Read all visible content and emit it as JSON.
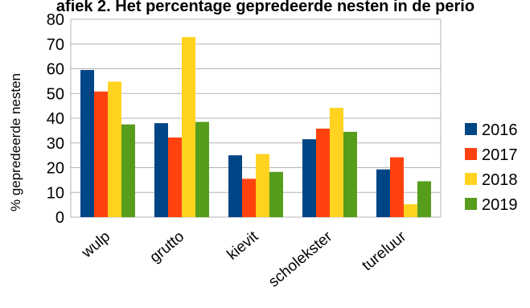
{
  "chart_data": {
    "type": "bar",
    "title": "afiek 2. Het percentage gepredeerde nesten in de perio",
    "ylabel": "% gepredeerde nesten",
    "xlabel": "",
    "ylim": [
      0,
      80
    ],
    "yticks": [
      0,
      10,
      20,
      30,
      40,
      50,
      60,
      70,
      80
    ],
    "categories": [
      "wulp",
      "grutto",
      "kievit",
      "scholekster",
      "tureluur"
    ],
    "series": [
      {
        "name": "2016",
        "color": "#004586",
        "values": [
          59.5,
          38,
          25,
          31.5,
          19.3
        ]
      },
      {
        "name": "2017",
        "color": "#ff420e",
        "values": [
          50.8,
          32.2,
          15.5,
          35.8,
          24.2
        ]
      },
      {
        "name": "2018",
        "color": "#ffd320",
        "values": [
          54.8,
          72.8,
          25.5,
          44.2,
          5.2
        ]
      },
      {
        "name": "2019",
        "color": "#579d1c",
        "values": [
          37.5,
          38.5,
          18.3,
          34.5,
          14.5
        ]
      }
    ],
    "grid": true,
    "legend": "right"
  }
}
